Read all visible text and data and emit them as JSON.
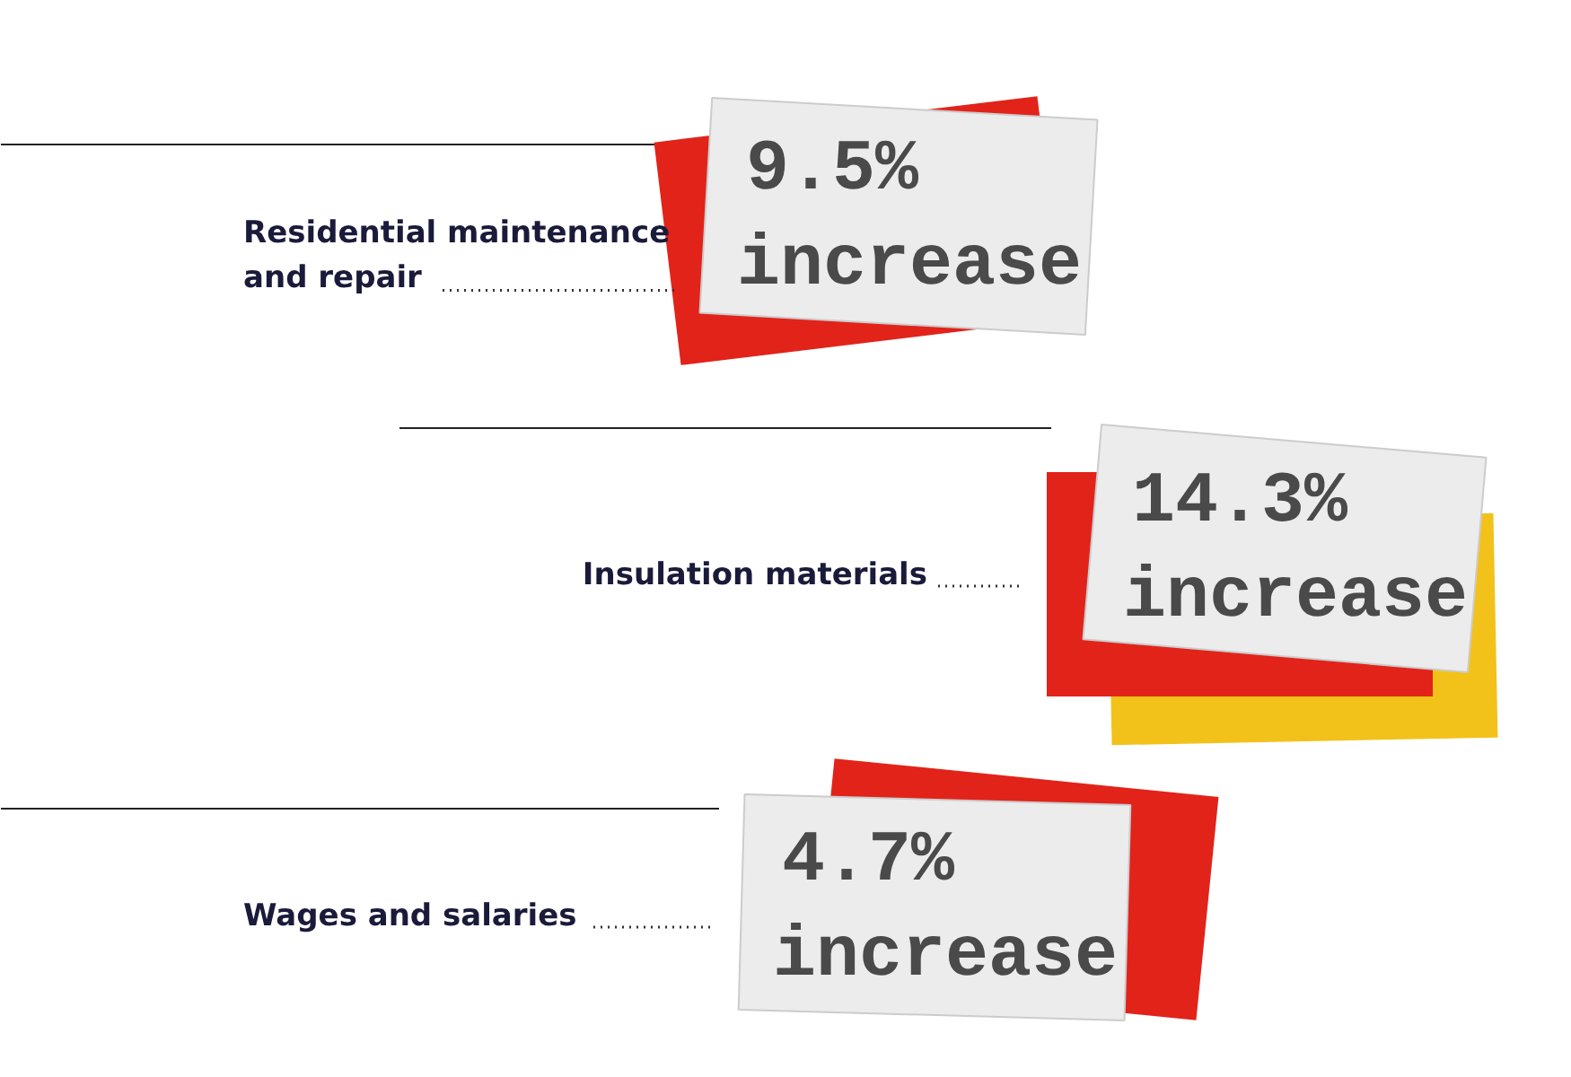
{
  "chart_data": {
    "type": "other",
    "categories": [
      "Residential maintenance and repair",
      "Insulation materials",
      "Wages and salaries"
    ],
    "values": [
      9.5,
      14.3,
      4.7
    ],
    "value_labels": [
      "9.5%",
      "14.3%",
      "4.7%"
    ],
    "annotations": [
      "increase",
      "increase",
      "increase"
    ]
  }
}
